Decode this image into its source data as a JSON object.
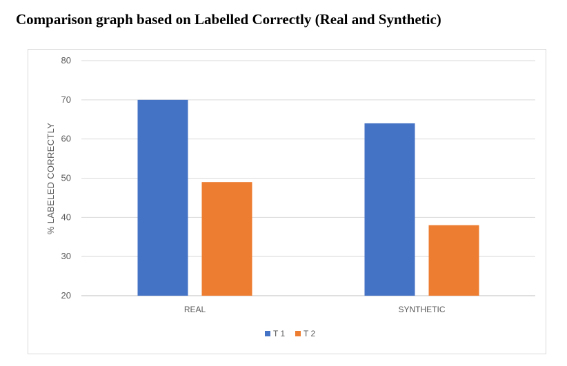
{
  "page": {
    "title": "Comparison graph based on Labelled Correctly (Real and Synthetic)"
  },
  "chart_data": {
    "type": "bar",
    "title": "",
    "xlabel": "",
    "ylabel": "% LABELED CORRECTLY",
    "categories": [
      "REAL",
      "SYNTHETIC"
    ],
    "series": [
      {
        "name": "T 1",
        "color": "#4472c4",
        "values": [
          70,
          64
        ]
      },
      {
        "name": "T 2",
        "color": "#ed7d31",
        "values": [
          49,
          38
        ]
      }
    ],
    "ylim": [
      20,
      80
    ],
    "yticks": [
      20,
      30,
      40,
      50,
      60,
      70,
      80
    ],
    "grid": true,
    "legend_position": "bottom"
  }
}
